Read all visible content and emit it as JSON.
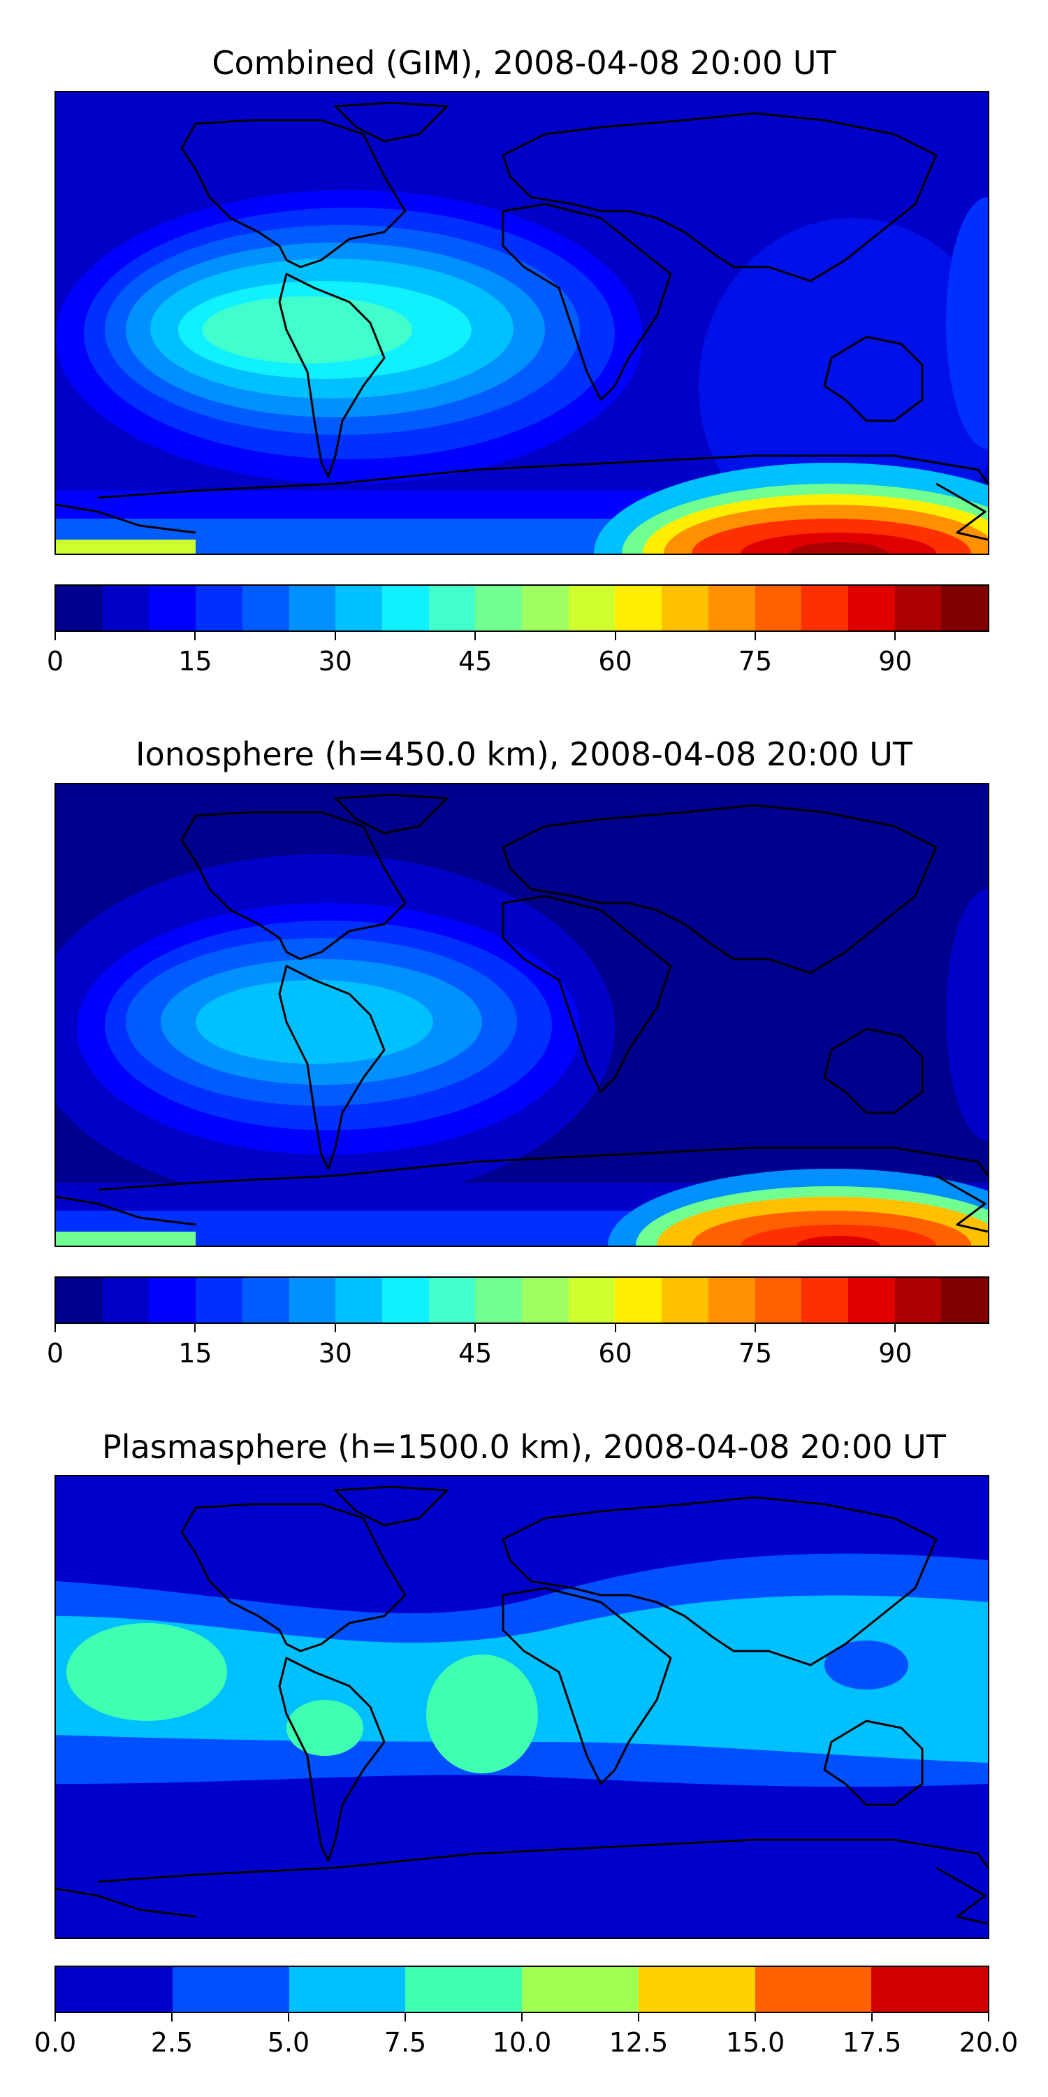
{
  "panels": [
    {
      "title": "Combined (GIM), 2008-04-08 20:00 UT",
      "colorbar": {
        "ticks": [
          "0",
          "15",
          "30",
          "45",
          "60",
          "75",
          "90"
        ],
        "tick_values": [
          0,
          15,
          30,
          45,
          60,
          75,
          90
        ],
        "vmin": 0,
        "vmax": 100,
        "colors": [
          "#00008f",
          "#0000c8",
          "#0000ff",
          "#0030ff",
          "#005cff",
          "#0090ff",
          "#00c0ff",
          "#10f0ff",
          "#40ffcc",
          "#70ff90",
          "#a0ff60",
          "#d0ff30",
          "#ffee00",
          "#ffc000",
          "#ff9000",
          "#ff6000",
          "#ff3000",
          "#e00000",
          "#aa0000",
          "#800000"
        ]
      }
    },
    {
      "title": "Ionosphere  (h=450.0 km), 2008-04-08 20:00 UT",
      "colorbar": {
        "ticks": [
          "0",
          "15",
          "30",
          "45",
          "60",
          "75",
          "90"
        ],
        "tick_values": [
          0,
          15,
          30,
          45,
          60,
          75,
          90
        ],
        "vmin": 0,
        "vmax": 100,
        "colors": [
          "#00008f",
          "#0000c8",
          "#0000ff",
          "#0030ff",
          "#005cff",
          "#0090ff",
          "#00c0ff",
          "#10f0ff",
          "#40ffcc",
          "#70ff90",
          "#a0ff60",
          "#d0ff30",
          "#ffee00",
          "#ffc000",
          "#ff9000",
          "#ff6000",
          "#ff3000",
          "#e00000",
          "#aa0000",
          "#800000"
        ]
      }
    },
    {
      "title": "Plasmasphere (h=1500.0 km), 2008-04-08 20:00 UT",
      "colorbar": {
        "ticks": [
          "0.0",
          "2.5",
          "5.0",
          "7.5",
          "10.0",
          "12.5",
          "15.0",
          "17.5",
          "20.0"
        ],
        "tick_values": [
          0,
          2.5,
          5,
          7.5,
          10,
          12.5,
          15,
          17.5,
          20
        ],
        "vmin": 0,
        "vmax": 20,
        "colors": [
          "#0000cd",
          "#0050ff",
          "#00c0ff",
          "#40ffb0",
          "#a0ff50",
          "#ffd000",
          "#ff6000",
          "#d00000"
        ]
      }
    }
  ]
}
